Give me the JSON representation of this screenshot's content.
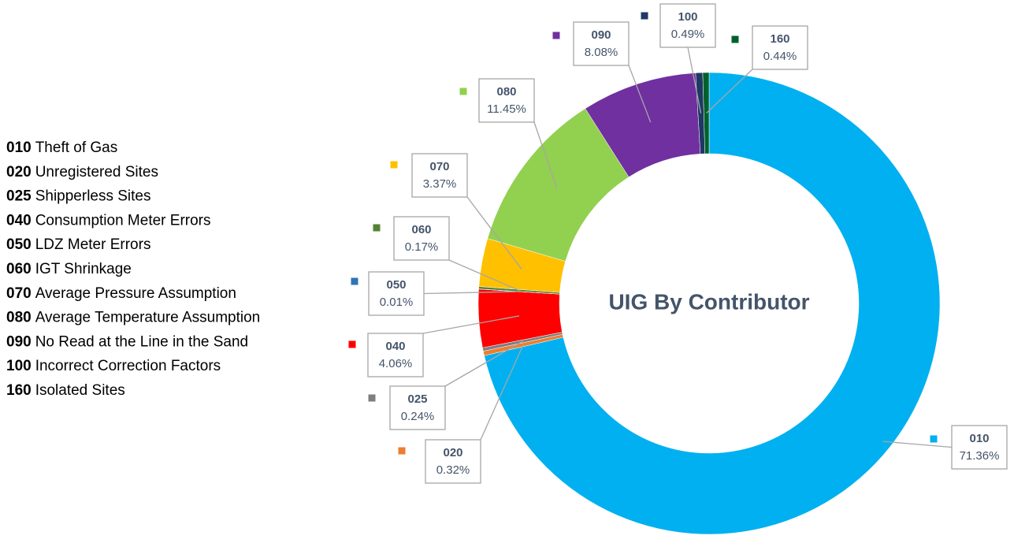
{
  "chart_data": {
    "type": "donut",
    "title": "UIG By Contributor",
    "categories": [
      "010",
      "020",
      "025",
      "040",
      "050",
      "060",
      "070",
      "080",
      "090",
      "100",
      "160"
    ],
    "descriptions": [
      "Theft of Gas",
      "Unregistered Sites",
      "Shipperless Sites",
      "Consumption Meter Errors",
      "LDZ Meter Errors",
      "IGT Shrinkage",
      "Average Pressure Assumption",
      "Average Temperature Assumption",
      "No Read at the Line in the Sand",
      "Incorrect Correction Factors",
      "Isolated Sites"
    ],
    "values": [
      71.36,
      0.32,
      0.24,
      4.06,
      0.01,
      0.17,
      3.37,
      11.45,
      8.08,
      0.49,
      0.44
    ],
    "value_labels": [
      "71.36%",
      "0.32%",
      "0.24%",
      "4.06%",
      "0.01%",
      "0.17%",
      "3.37%",
      "11.45%",
      "8.08%",
      "0.49%",
      "0.44%"
    ],
    "colors": [
      "#00b0f0",
      "#ed7d31",
      "#7f7f7f",
      "#ff0000",
      "#2e75b6",
      "#548235",
      "#ffc000",
      "#92d050",
      "#7030a0",
      "#1f3864",
      "#00602b"
    ]
  }
}
